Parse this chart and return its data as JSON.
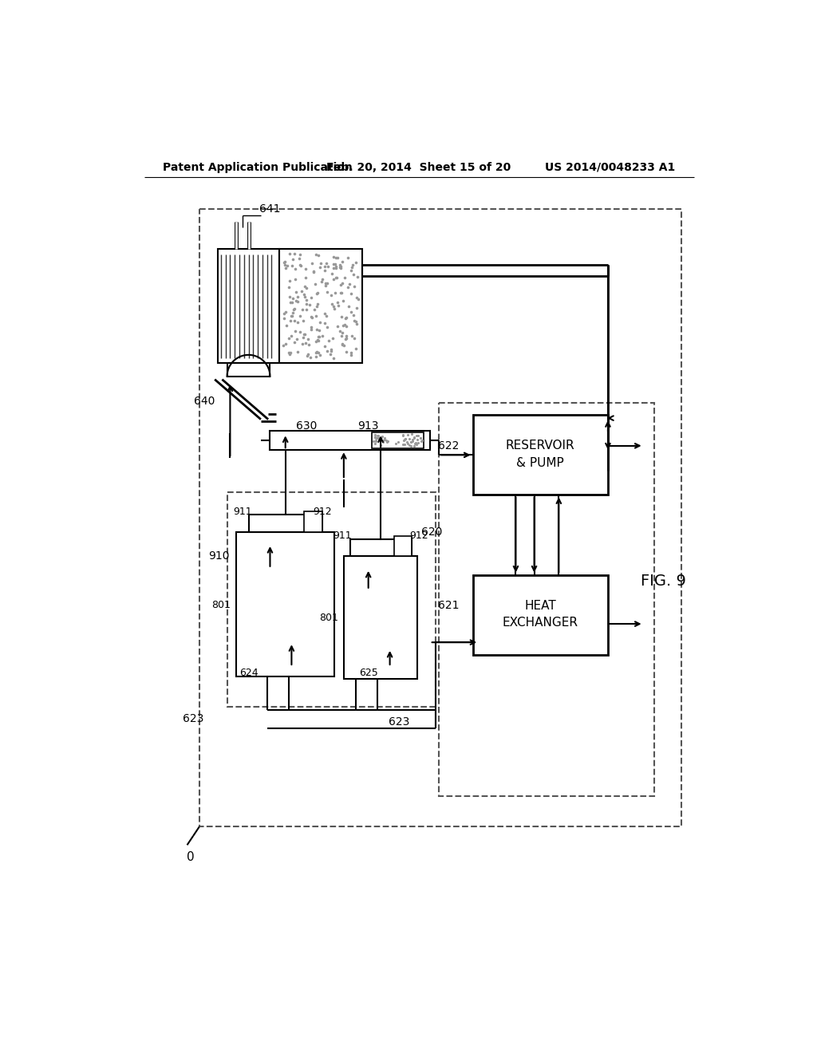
{
  "title_left": "Patent Application Publication",
  "title_mid": "Feb. 20, 2014  Sheet 15 of 20",
  "title_right": "US 2014/0048233 A1",
  "bg_color": "#ffffff",
  "line_color": "#000000",
  "dashed_color": "#666666"
}
